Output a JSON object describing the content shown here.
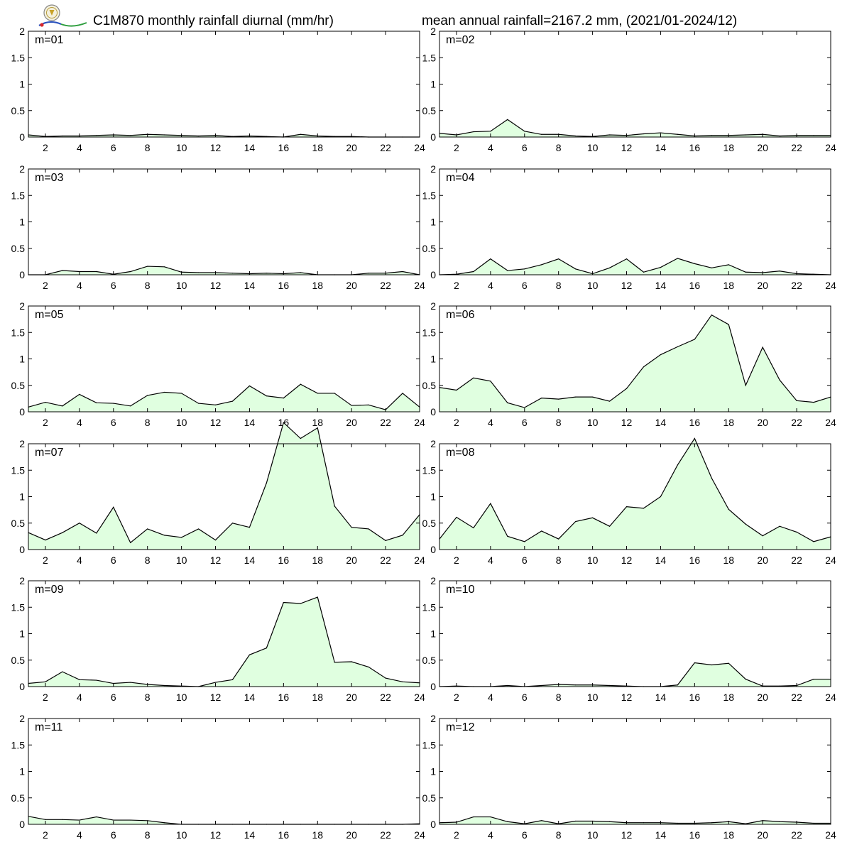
{
  "header": {
    "title_left": "C1M870 monthly rainfall diurnal (mm/hr)",
    "title_right": "mean annual rainfall=2167.2 mm, (2021/01-2024/12)",
    "logo_icon": "lab-seal-logo-icon"
  },
  "colors": {
    "fill": "#e0ffe0",
    "line": "#000000",
    "frame": "#000000"
  },
  "chart_data": [
    {
      "type": "area",
      "label": "m=01",
      "x": [
        1,
        2,
        3,
        4,
        5,
        6,
        7,
        8,
        9,
        10,
        11,
        12,
        13,
        14,
        15,
        16,
        17,
        18,
        19,
        20,
        21,
        22,
        23,
        24
      ],
      "values": [
        0.04,
        0.01,
        0.02,
        0.02,
        0.03,
        0.04,
        0.03,
        0.05,
        0.04,
        0.03,
        0.02,
        0.03,
        0.01,
        0.02,
        0.01,
        0.0,
        0.05,
        0.02,
        0.01,
        0.01,
        0.0,
        0.0,
        0.0,
        0.0
      ],
      "ylim": [
        0,
        2
      ],
      "yticks": [
        0,
        0.5,
        1,
        1.5,
        2
      ],
      "xticks": [
        2,
        4,
        6,
        8,
        10,
        12,
        14,
        16,
        18,
        20,
        22,
        24
      ]
    },
    {
      "type": "area",
      "label": "m=02",
      "x": [
        1,
        2,
        3,
        4,
        5,
        6,
        7,
        8,
        9,
        10,
        11,
        12,
        13,
        14,
        15,
        16,
        17,
        18,
        19,
        20,
        21,
        22,
        23,
        24
      ],
      "values": [
        0.07,
        0.04,
        0.1,
        0.11,
        0.33,
        0.11,
        0.05,
        0.05,
        0.02,
        0.01,
        0.04,
        0.03,
        0.06,
        0.08,
        0.05,
        0.02,
        0.03,
        0.03,
        0.04,
        0.05,
        0.02,
        0.03,
        0.03,
        0.03
      ],
      "ylim": [
        0,
        2
      ],
      "yticks": [
        0,
        0.5,
        1,
        1.5,
        2
      ],
      "xticks": [
        2,
        4,
        6,
        8,
        10,
        12,
        14,
        16,
        18,
        20,
        22,
        24
      ]
    },
    {
      "type": "area",
      "label": "m=03",
      "x": [
        1,
        2,
        3,
        4,
        5,
        6,
        7,
        8,
        9,
        10,
        11,
        12,
        13,
        14,
        15,
        16,
        17,
        18,
        19,
        20,
        21,
        22,
        23,
        24
      ],
      "values": [
        0.0,
        0.0,
        0.08,
        0.06,
        0.06,
        0.01,
        0.06,
        0.16,
        0.15,
        0.05,
        0.04,
        0.04,
        0.03,
        0.02,
        0.03,
        0.02,
        0.04,
        0.0,
        0.0,
        0.0,
        0.03,
        0.03,
        0.06,
        0.0
      ],
      "ylim": [
        0,
        2
      ],
      "yticks": [
        0,
        0.5,
        1,
        1.5,
        2
      ],
      "xticks": [
        2,
        4,
        6,
        8,
        10,
        12,
        14,
        16,
        18,
        20,
        22,
        24
      ]
    },
    {
      "type": "area",
      "label": "m=04",
      "x": [
        1,
        2,
        3,
        4,
        5,
        6,
        7,
        8,
        9,
        10,
        11,
        12,
        13,
        14,
        15,
        16,
        17,
        18,
        19,
        20,
        21,
        22,
        23,
        24
      ],
      "values": [
        0.0,
        0.01,
        0.06,
        0.3,
        0.08,
        0.11,
        0.19,
        0.3,
        0.11,
        0.02,
        0.13,
        0.3,
        0.05,
        0.14,
        0.31,
        0.21,
        0.13,
        0.19,
        0.05,
        0.04,
        0.07,
        0.02,
        0.01,
        0.0
      ],
      "ylim": [
        0,
        2
      ],
      "yticks": [
        0,
        0.5,
        1,
        1.5,
        2
      ],
      "xticks": [
        2,
        4,
        6,
        8,
        10,
        12,
        14,
        16,
        18,
        20,
        22,
        24
      ]
    },
    {
      "type": "area",
      "label": "m=05",
      "x": [
        1,
        2,
        3,
        4,
        5,
        6,
        7,
        8,
        9,
        10,
        11,
        12,
        13,
        14,
        15,
        16,
        17,
        18,
        19,
        20,
        21,
        22,
        23,
        24
      ],
      "values": [
        0.09,
        0.18,
        0.11,
        0.33,
        0.17,
        0.16,
        0.11,
        0.31,
        0.37,
        0.35,
        0.16,
        0.13,
        0.2,
        0.49,
        0.3,
        0.26,
        0.52,
        0.35,
        0.35,
        0.12,
        0.13,
        0.04,
        0.35,
        0.09
      ],
      "ylim": [
        0,
        2
      ],
      "yticks": [
        0,
        0.5,
        1,
        1.5,
        2
      ],
      "xticks": [
        2,
        4,
        6,
        8,
        10,
        12,
        14,
        16,
        18,
        20,
        22,
        24
      ]
    },
    {
      "type": "area",
      "label": "m=06",
      "x": [
        1,
        2,
        3,
        4,
        5,
        6,
        7,
        8,
        9,
        10,
        11,
        12,
        13,
        14,
        15,
        16,
        17,
        18,
        19,
        20,
        21,
        22,
        23,
        24
      ],
      "values": [
        0.46,
        0.41,
        0.64,
        0.58,
        0.17,
        0.08,
        0.26,
        0.24,
        0.28,
        0.28,
        0.2,
        0.44,
        0.85,
        1.08,
        1.23,
        1.37,
        1.83,
        1.65,
        0.5,
        1.22,
        0.6,
        0.21,
        0.18,
        0.28
      ],
      "ylim": [
        0,
        2
      ],
      "yticks": [
        0,
        0.5,
        1,
        1.5,
        2
      ],
      "xticks": [
        2,
        4,
        6,
        8,
        10,
        12,
        14,
        16,
        18,
        20,
        22,
        24
      ]
    },
    {
      "type": "area",
      "label": "m=07",
      "x": [
        1,
        2,
        3,
        4,
        5,
        6,
        7,
        8,
        9,
        10,
        11,
        12,
        13,
        14,
        15,
        16,
        17,
        18,
        19,
        20,
        21,
        22,
        23,
        24
      ],
      "values": [
        0.32,
        0.18,
        0.32,
        0.5,
        0.31,
        0.8,
        0.13,
        0.39,
        0.27,
        0.23,
        0.39,
        0.18,
        0.5,
        0.42,
        1.26,
        2.4,
        2.1,
        2.3,
        0.82,
        0.42,
        0.39,
        0.17,
        0.27,
        0.66
      ],
      "ylim": [
        0,
        2
      ],
      "yticks": [
        0,
        0.5,
        1,
        1.5,
        2
      ],
      "xticks": [
        2,
        4,
        6,
        8,
        10,
        12,
        14,
        16,
        18,
        20,
        22,
        24
      ]
    },
    {
      "type": "area",
      "label": "m=08",
      "x": [
        1,
        2,
        3,
        4,
        5,
        6,
        7,
        8,
        9,
        10,
        11,
        12,
        13,
        14,
        15,
        16,
        17,
        18,
        19,
        20,
        21,
        22,
        23,
        24
      ],
      "values": [
        0.2,
        0.61,
        0.41,
        0.87,
        0.25,
        0.15,
        0.35,
        0.2,
        0.53,
        0.6,
        0.44,
        0.81,
        0.78,
        1.0,
        1.6,
        2.1,
        1.35,
        0.76,
        0.48,
        0.26,
        0.44,
        0.33,
        0.15,
        0.24
      ],
      "ylim": [
        0,
        2
      ],
      "yticks": [
        0,
        0.5,
        1,
        1.5,
        2
      ],
      "xticks": [
        2,
        4,
        6,
        8,
        10,
        12,
        14,
        16,
        18,
        20,
        22,
        24
      ]
    },
    {
      "type": "area",
      "label": "m=09",
      "x": [
        1,
        2,
        3,
        4,
        5,
        6,
        7,
        8,
        9,
        10,
        11,
        12,
        13,
        14,
        15,
        16,
        17,
        18,
        19,
        20,
        21,
        22,
        23,
        24
      ],
      "values": [
        0.06,
        0.09,
        0.28,
        0.13,
        0.12,
        0.06,
        0.08,
        0.04,
        0.02,
        0.01,
        0.0,
        0.08,
        0.13,
        0.6,
        0.73,
        1.59,
        1.57,
        1.69,
        0.46,
        0.47,
        0.37,
        0.16,
        0.09,
        0.07
      ],
      "ylim": [
        0,
        2
      ],
      "yticks": [
        0,
        0.5,
        1,
        1.5,
        2
      ],
      "xticks": [
        2,
        4,
        6,
        8,
        10,
        12,
        14,
        16,
        18,
        20,
        22,
        24
      ]
    },
    {
      "type": "area",
      "label": "m=10",
      "x": [
        1,
        2,
        3,
        4,
        5,
        6,
        7,
        8,
        9,
        10,
        11,
        12,
        13,
        14,
        15,
        16,
        17,
        18,
        19,
        20,
        21,
        22,
        23,
        24
      ],
      "values": [
        0.0,
        0.01,
        0.0,
        0.0,
        0.02,
        0.0,
        0.02,
        0.04,
        0.03,
        0.03,
        0.02,
        0.01,
        0.0,
        0.0,
        0.03,
        0.45,
        0.41,
        0.44,
        0.14,
        0.01,
        0.01,
        0.02,
        0.14,
        0.14
      ],
      "ylim": [
        0,
        2
      ],
      "yticks": [
        0,
        0.5,
        1,
        1.5,
        2
      ],
      "xticks": [
        2,
        4,
        6,
        8,
        10,
        12,
        14,
        16,
        18,
        20,
        22,
        24
      ]
    },
    {
      "type": "area",
      "label": "m=11",
      "x": [
        1,
        2,
        3,
        4,
        5,
        6,
        7,
        8,
        9,
        10,
        11,
        12,
        13,
        14,
        15,
        16,
        17,
        18,
        19,
        20,
        21,
        22,
        23,
        24
      ],
      "values": [
        0.15,
        0.09,
        0.09,
        0.08,
        0.14,
        0.08,
        0.08,
        0.07,
        0.03,
        0.0,
        0.0,
        0.0,
        0.0,
        0.0,
        0.0,
        0.0,
        0.0,
        0.0,
        0.0,
        0.0,
        0.0,
        0.0,
        0.0,
        0.01
      ],
      "ylim": [
        0,
        2
      ],
      "yticks": [
        0,
        0.5,
        1,
        1.5,
        2
      ],
      "xticks": [
        2,
        4,
        6,
        8,
        10,
        12,
        14,
        16,
        18,
        20,
        22,
        24
      ]
    },
    {
      "type": "area",
      "label": "m=12",
      "x": [
        1,
        2,
        3,
        4,
        5,
        6,
        7,
        8,
        9,
        10,
        11,
        12,
        13,
        14,
        15,
        16,
        17,
        18,
        19,
        20,
        21,
        22,
        23,
        24
      ],
      "values": [
        0.03,
        0.04,
        0.14,
        0.14,
        0.05,
        0.01,
        0.07,
        0.01,
        0.06,
        0.06,
        0.05,
        0.03,
        0.03,
        0.03,
        0.02,
        0.02,
        0.03,
        0.05,
        0.01,
        0.07,
        0.05,
        0.04,
        0.02,
        0.02
      ],
      "ylim": [
        0,
        2
      ],
      "yticks": [
        0,
        0.5,
        1,
        1.5,
        2
      ],
      "xticks": [
        2,
        4,
        6,
        8,
        10,
        12,
        14,
        16,
        18,
        20,
        22,
        24
      ]
    }
  ]
}
